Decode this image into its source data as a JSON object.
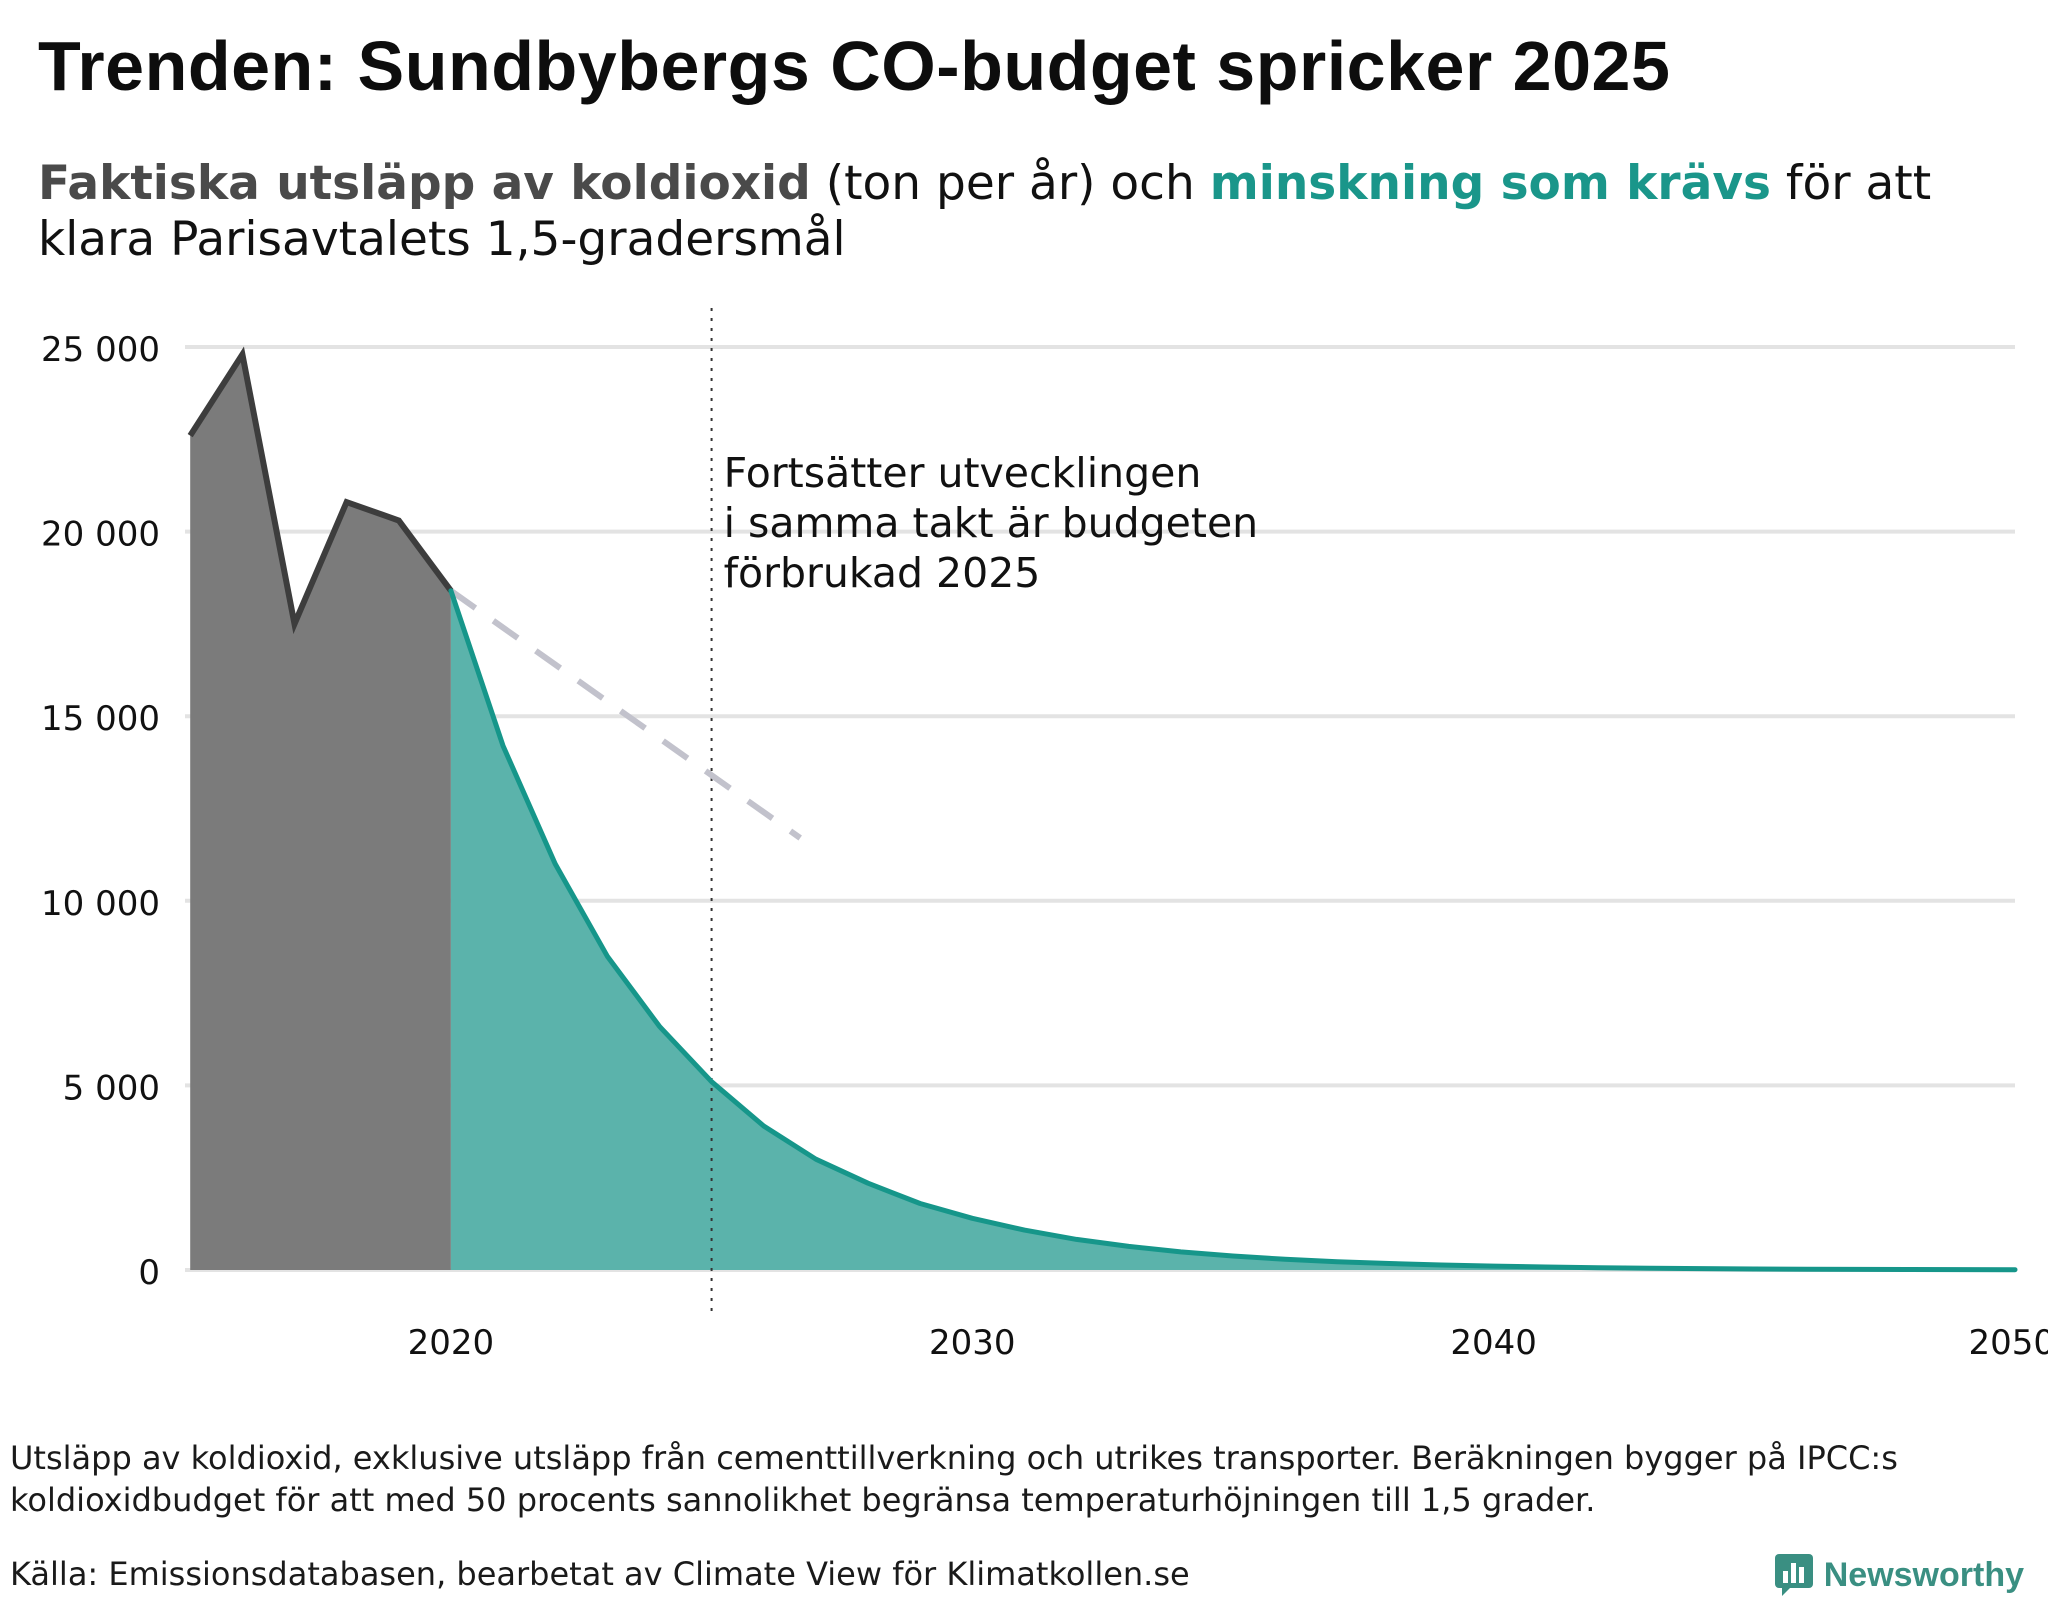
{
  "header": {
    "title": "Trenden: Sundbybergs CO-budget spricker 2025",
    "subtitle": {
      "part1": "Faktiska utsläpp av koldioxid",
      "part2": " (ton per år) och ",
      "part3": "minskning som krävs",
      "part4": " för att klara Parisavtalets 1,5-gradersmål"
    }
  },
  "annotation": {
    "line1": "Fortsätter utvecklingen",
    "line2": "i samma takt är budgeten",
    "line3": "förbrukad 2025"
  },
  "footer": {
    "note": "Utsläpp av koldioxid, exklusive utsläpp från cementtillverkning och utrikes transporter. Beräkningen bygger på IPCC:s koldioxidbudget för att med 50 procents sannolikhet begränsa temperaturhöjningen till 1,5 grader.",
    "source": "Källa: Emissionsdatabasen, bearbetat av Climate View för Klimatkollen.se",
    "brand": "Newsworthy"
  },
  "colors": {
    "actual_fill": "#7b7b7b",
    "actual_line": "#3d3d3d",
    "required_fill": "#5bb3ab",
    "required_line": "#16968a",
    "trend_line": "#c2c2cc",
    "grid": "#e3e3e3",
    "brand": "#3a8f82"
  },
  "chart_data": {
    "type": "area",
    "xlim": [
      2015,
      2050
    ],
    "ylim": [
      0,
      25000
    ],
    "xticks": [
      2020,
      2030,
      2040,
      2050
    ],
    "yticks": [
      0,
      5000,
      10000,
      15000,
      20000,
      25000
    ],
    "ytick_labels": [
      "0",
      "5 000",
      "10 000",
      "15 000",
      "20 000",
      "25 000"
    ],
    "grid": true,
    "marker_year": 2025,
    "series": [
      {
        "key": "actual",
        "x": [
          2015,
          2016,
          2017,
          2018,
          2019,
          2020
        ],
        "values": [
          22600,
          24800,
          17500,
          20800,
          20300,
          18400
        ]
      },
      {
        "key": "required",
        "x": [
          2020,
          2021,
          2022,
          2023,
          2024,
          2025,
          2026,
          2027,
          2028,
          2029,
          2030,
          2031,
          2032,
          2033,
          2034,
          2035,
          2036,
          2037,
          2038,
          2039,
          2040,
          2041,
          2042,
          2043,
          2044,
          2045,
          2046,
          2047,
          2048,
          2049,
          2050
        ],
        "values": [
          18400,
          14200,
          11000,
          8500,
          6600,
          5100,
          3900,
          3000,
          2350,
          1800,
          1400,
          1080,
          830,
          640,
          490,
          380,
          290,
          225,
          175,
          135,
          105,
          80,
          62,
          48,
          37,
          28,
          22,
          17,
          13,
          10,
          8
        ]
      },
      {
        "key": "trend",
        "x": [
          2020,
          2026.7
        ],
        "values": [
          18400,
          11700
        ]
      }
    ]
  }
}
